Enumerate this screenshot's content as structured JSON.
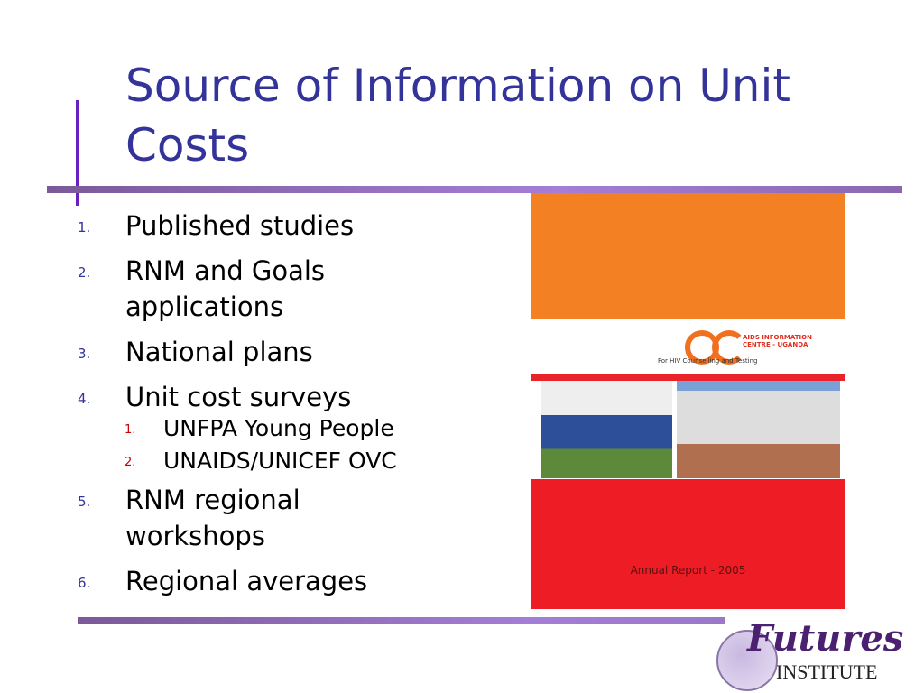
{
  "title": "Source of Information on Unit Costs",
  "items": [
    {
      "num": "1.",
      "text": "Published studies"
    },
    {
      "num": "2.",
      "text": "RNM and Goals applications"
    },
    {
      "num": "3.",
      "text": "National plans"
    },
    {
      "num": "4.",
      "text": "Unit cost surveys",
      "sub": [
        {
          "num": "1.",
          "text": "UNFPA Young People"
        },
        {
          "num": "2.",
          "text": "UNAIDS/UNICEF OVC"
        }
      ]
    },
    {
      "num": "5.",
      "text": "RNM regional workshops"
    },
    {
      "num": "6.",
      "text": "Regional averages"
    }
  ],
  "cover": {
    "org_line1": "AIDS INFORMATION",
    "org_line2": "CENTRE - UGANDA",
    "tagline": "For HIV Counselling and Testing",
    "caption": "Annual Report - 2005"
  },
  "logo": {
    "word1": "Futures",
    "word2": "INSTITUTE"
  },
  "colors": {
    "title": "#333399",
    "accent": "#6a1fc0",
    "orange": "#f48024",
    "red": "#ee1c25"
  }
}
